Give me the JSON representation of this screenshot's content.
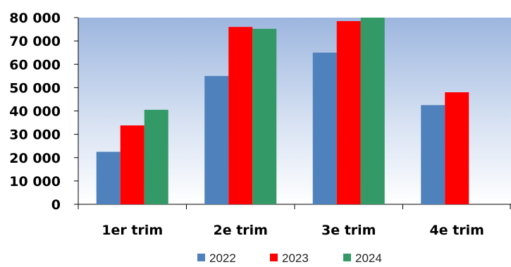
{
  "chart_data": {
    "type": "bar",
    "categories": [
      "1er trim",
      "2e trim",
      "3e trim",
      "4e trim"
    ],
    "series": [
      {
        "name": "2022",
        "color": "#4F81BD",
        "values": [
          22500,
          55000,
          65000,
          42500
        ]
      },
      {
        "name": "2023",
        "color": "#FF0000",
        "values": [
          33800,
          76000,
          78500,
          48000
        ]
      },
      {
        "name": "2024",
        "color": "#339966",
        "values": [
          40500,
          75200,
          80000,
          null
        ]
      }
    ],
    "y_ticks": [
      "0",
      "10 000",
      "20 000",
      "30 000",
      "40 000",
      "50 000",
      "60 000",
      "70 000",
      "80 000"
    ],
    "ylim": [
      0,
      80000
    ],
    "grid": false,
    "legend_position": "bottom",
    "background": "gradient-blue-to-white",
    "title": "",
    "xlabel": "",
    "ylabel": ""
  }
}
